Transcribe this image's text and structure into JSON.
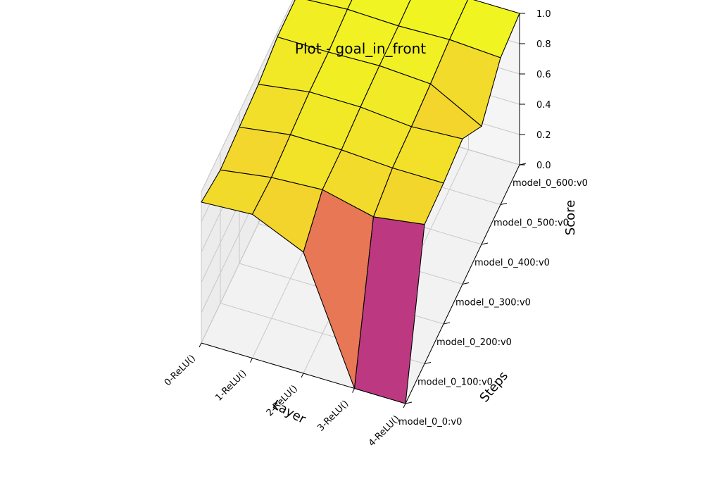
{
  "chart_data": {
    "type": "surface3d",
    "title": "Plot - goal_in_front",
    "xlabel": "Layer",
    "ylabel": "Steps",
    "zlabel": "Score",
    "x_ticks": [
      "0-ReLU()",
      "1-ReLU()",
      "2-ReLU()",
      "3-ReLU()",
      "4-ReLU()"
    ],
    "y_ticks": [
      "model_0_0:v0",
      "model_0_100:v0",
      "model_0_200:v0",
      "model_0_300:v0",
      "model_0_400:v0",
      "model_0_500:v0",
      "model_0_600:v0"
    ],
    "z_ticks": [
      "0.0",
      "0.2",
      "0.4",
      "0.6",
      "0.8",
      "1.0"
    ],
    "zlim": [
      0,
      1
    ],
    "colormap": "plasma",
    "z": [
      [
        0.93,
        0.88,
        0.9,
        0.92,
        0.97,
        0.97,
        0.97
      ],
      [
        0.95,
        0.93,
        0.95,
        0.97,
        0.97,
        0.99,
        0.99
      ],
      [
        0.8,
        0.95,
        0.95,
        0.97,
        0.98,
        0.98,
        0.99
      ],
      [
        0.0,
        0.87,
        0.93,
        0.94,
        0.96,
        0.99,
        1.0
      ],
      [
        0.0,
        0.92,
        0.93,
        0.96,
        0.78,
        0.97,
        1.0
      ]
    ]
  }
}
